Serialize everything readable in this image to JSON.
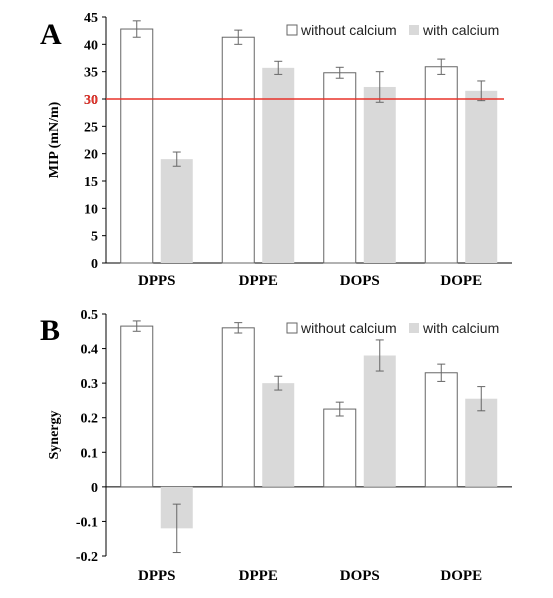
{
  "chart_data": [
    {
      "panel_label": "A",
      "type": "bar",
      "ylabel": "MIP (mN/m)",
      "ylim": [
        0,
        45
      ],
      "yticks": [
        0,
        5,
        10,
        15,
        20,
        25,
        30,
        35,
        40,
        45
      ],
      "grid": false,
      "legend_position": "top-right",
      "categories": [
        "DPPS",
        "DPPE",
        "DOPS",
        "DOPE"
      ],
      "reference_line": {
        "value": 30,
        "label": "30",
        "color": "#e8332a"
      },
      "series": [
        {
          "name": "without calcium",
          "style": "outline",
          "values": [
            42.8,
            41.3,
            34.8,
            35.9
          ],
          "errors": [
            1.5,
            1.3,
            1.0,
            1.4
          ]
        },
        {
          "name": "with calcium",
          "style": "filled",
          "values": [
            19.0,
            35.7,
            32.2,
            31.5
          ],
          "errors": [
            1.3,
            1.2,
            2.8,
            1.8
          ]
        }
      ]
    },
    {
      "panel_label": "B",
      "type": "bar",
      "ylabel": "Synergy",
      "ylim": [
        -0.2,
        0.5
      ],
      "yticks": [
        -0.2,
        -0.1,
        0,
        0.1,
        0.2,
        0.3,
        0.4,
        0.5
      ],
      "grid": false,
      "legend_position": "top-right",
      "categories": [
        "DPPS",
        "DPPE",
        "DOPS",
        "DOPE"
      ],
      "series": [
        {
          "name": "without calcium",
          "style": "outline",
          "values": [
            0.465,
            0.46,
            0.225,
            0.33
          ],
          "errors": [
            0.015,
            0.015,
            0.02,
            0.025
          ]
        },
        {
          "name": "with calcium",
          "style": "filled",
          "values": [
            -0.12,
            0.3,
            0.38,
            0.255
          ],
          "errors": [
            0.07,
            0.02,
            0.045,
            0.035
          ]
        }
      ]
    }
  ],
  "colors": {
    "outline_bar": "#ffffff",
    "outline_stroke": "#666666",
    "filled_bar": "#d9d9d9",
    "error_bar": "#666666",
    "axis": "#000000"
  }
}
